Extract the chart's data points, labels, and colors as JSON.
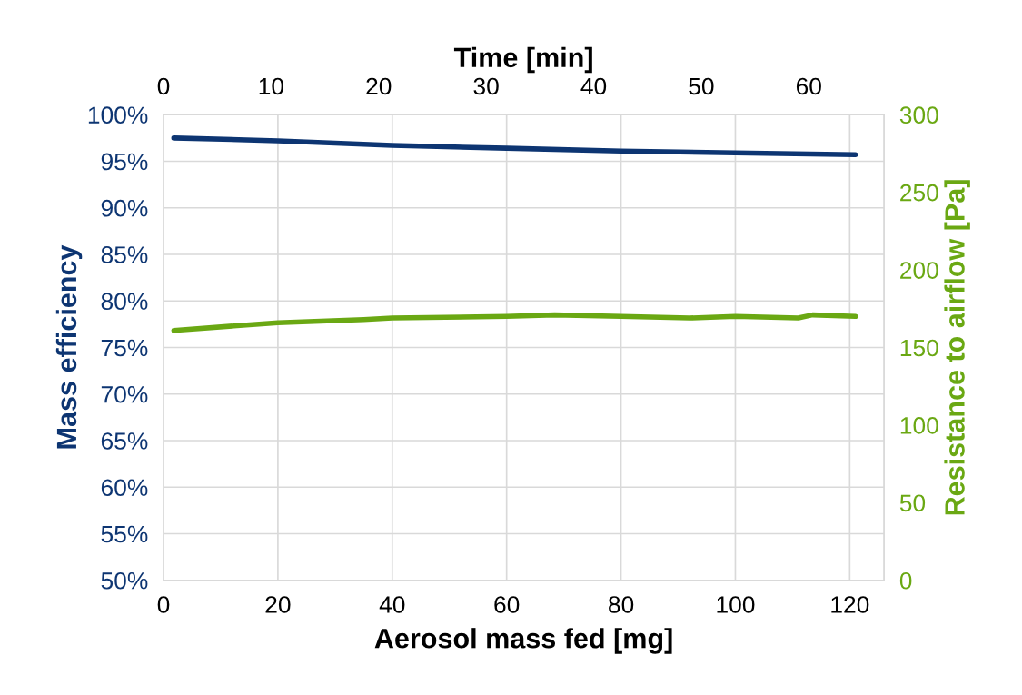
{
  "chart_data": {
    "type": "line",
    "xlabel": "Aerosol mass fed [mg]",
    "ylabel": "Mass efficiency",
    "y2label": "Resistance to airflow [Pa]",
    "x2label": "Time [min]",
    "xlim": [
      0,
      126
    ],
    "xticks": [
      0,
      20,
      40,
      60,
      80,
      100,
      120
    ],
    "x2lim": [
      0,
      67
    ],
    "x2ticks": [
      0,
      10,
      20,
      30,
      40,
      50,
      60
    ],
    "ylim": [
      50,
      100
    ],
    "yticks": [
      {
        "value": 50,
        "label": "50%"
      },
      {
        "value": 55,
        "label": "55%"
      },
      {
        "value": 60,
        "label": "60%"
      },
      {
        "value": 65,
        "label": "65%"
      },
      {
        "value": 70,
        "label": "70%"
      },
      {
        "value": 75,
        "label": "75%"
      },
      {
        "value": 80,
        "label": "80%"
      },
      {
        "value": 85,
        "label": "85%"
      },
      {
        "value": 90,
        "label": "90%"
      },
      {
        "value": 95,
        "label": "95%"
      },
      {
        "value": 100,
        "label": "100%"
      }
    ],
    "y2lim": [
      0,
      300
    ],
    "y2ticks": [
      0,
      50,
      100,
      150,
      200,
      250,
      300
    ],
    "grid": true,
    "marker": "none",
    "line_style": "solid",
    "series": [
      {
        "color": "#0d3572",
        "x": [
          1.8,
          20,
          40,
          60,
          80,
          100,
          121
        ],
        "values": [
          97.5,
          97.2,
          96.7,
          96.4,
          96.1,
          95.9,
          95.7
        ]
      },
      {
        "color": "#6aa813",
        "axis": "y2",
        "x": [
          1.8,
          20,
          35,
          40,
          60,
          68.4,
          80,
          92,
          100,
          111,
          113.5,
          121
        ],
        "values": [
          161,
          166,
          168,
          169,
          170,
          171,
          170,
          169,
          170,
          169,
          171,
          170
        ]
      }
    ]
  }
}
